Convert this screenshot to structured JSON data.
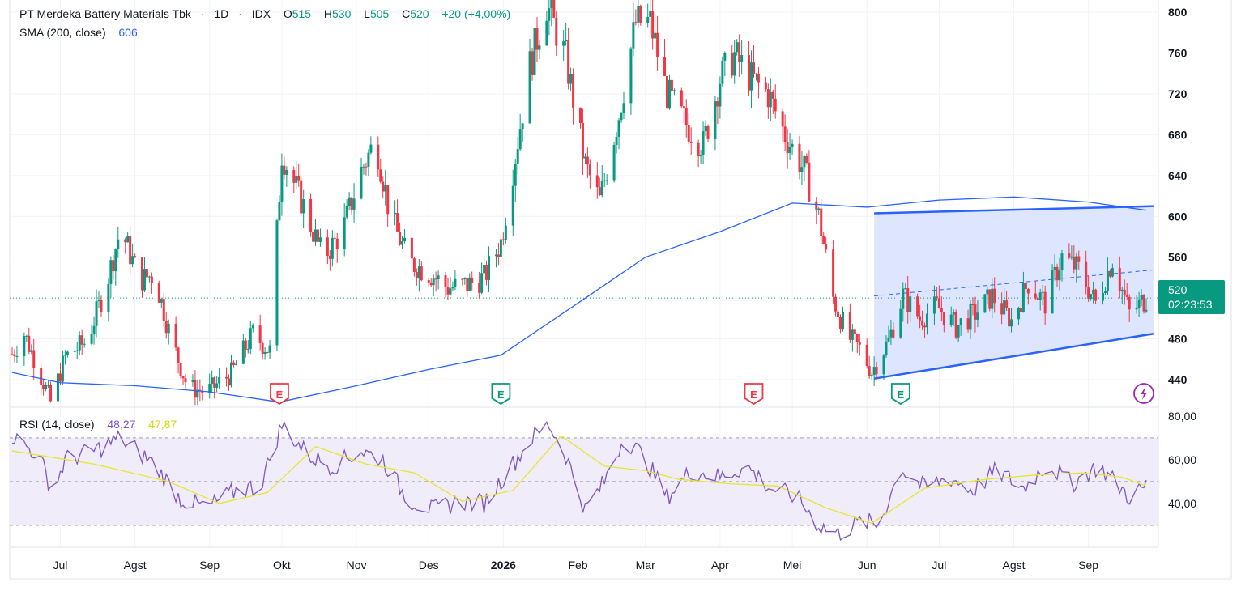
{
  "symbol": {
    "name": "PT Merdeka Battery Materials Tbk",
    "timeframe": "1D",
    "exchange": "IDX",
    "separator": "·",
    "ohlc": {
      "open_label": "O",
      "open": "515",
      "high_label": "H",
      "high": "530",
      "low_label": "L",
      "low": "505",
      "close_label": "C",
      "close": "520",
      "change": "+20 (+4,00%)"
    }
  },
  "indicators": {
    "sma": {
      "label": "SMA (200, close)",
      "value": "606"
    },
    "rsi": {
      "label": "RSI (14, close)",
      "value": "48,27",
      "sma_value": "47,87"
    }
  },
  "price_badge": {
    "price": "520",
    "countdown": "02:23:53"
  },
  "earnings_markers": [
    {
      "label": "E",
      "date": "2025-09-30",
      "kind": "negative"
    },
    {
      "label": "E",
      "date": "2025-12-31",
      "kind": "positive"
    },
    {
      "label": "E",
      "date": "2026-04-15",
      "kind": "negative"
    },
    {
      "label": "E",
      "date": "2026-06-15",
      "kind": "positive"
    }
  ],
  "colors": {
    "up": "#089981",
    "down": "#f23645",
    "sma": "#2962ff",
    "channel": "#2962ff",
    "channel_fill": "#d6e0ff",
    "rsi_line": "#7e57c2",
    "rsi_sma": "#e6e62e",
    "rsi_band": "#f1ecfa",
    "grid": "#f0f3fa",
    "axis_text": "#131722"
  },
  "chart_data": {
    "type": "candlestick",
    "x_tick_labels": [
      "Jul",
      "Agst",
      "Sep",
      "Okt",
      "Nov",
      "Des",
      "2026",
      "Feb",
      "Mar",
      "Apr",
      "Mei",
      "Jun",
      "Jul",
      "Agst",
      "Sep"
    ],
    "x_tick_dates": [
      "2025-07-01",
      "2025-08-01",
      "2025-09-01",
      "2025-10-01",
      "2025-11-01",
      "2025-12-01",
      "2026-01-01",
      "2026-02-01",
      "2026-03-01",
      "2026-04-01",
      "2026-05-01",
      "2026-06-01",
      "2026-07-01",
      "2026-08-01",
      "2026-09-01"
    ],
    "x_range": [
      "2025-06-11",
      "2026-09-25"
    ],
    "price_axis": {
      "ticks": [
        440,
        480,
        520,
        560,
        600,
        640,
        680,
        720,
        760,
        800
      ],
      "range": [
        413,
        812
      ]
    },
    "last_price": 520,
    "price_path": [
      [
        "2025-06-11",
        465
      ],
      [
        "2025-06-16",
        485
      ],
      [
        "2025-06-22",
        450
      ],
      [
        "2025-06-27",
        418
      ],
      [
        "2025-07-03",
        462
      ],
      [
        "2025-07-12",
        478
      ],
      [
        "2025-07-20",
        532
      ],
      [
        "2025-07-26",
        588
      ],
      [
        "2025-08-03",
        538
      ],
      [
        "2025-08-09",
        543
      ],
      [
        "2025-08-16",
        480
      ],
      [
        "2025-08-23",
        432
      ],
      [
        "2025-08-31",
        428
      ],
      [
        "2025-09-10",
        446
      ],
      [
        "2025-09-19",
        485
      ],
      [
        "2025-09-26",
        468
      ],
      [
        "2025-10-01",
        662
      ],
      [
        "2025-10-10",
        610
      ],
      [
        "2025-10-18",
        560
      ],
      [
        "2025-10-26",
        584
      ],
      [
        "2025-11-03",
        645
      ],
      [
        "2025-11-09",
        675
      ],
      [
        "2025-11-15",
        600
      ],
      [
        "2025-11-23",
        555
      ],
      [
        "2025-12-01",
        545
      ],
      [
        "2025-12-09",
        530
      ],
      [
        "2025-12-17",
        533
      ],
      [
        "2025-12-24",
        540
      ],
      [
        "2025-12-31",
        575
      ],
      [
        "2026-01-06",
        660
      ],
      [
        "2026-01-12",
        748
      ],
      [
        "2026-01-19",
        808
      ],
      [
        "2026-01-27",
        755
      ],
      [
        "2026-02-04",
        650
      ],
      [
        "2026-02-10",
        615
      ],
      [
        "2026-02-18",
        700
      ],
      [
        "2026-02-25",
        790
      ],
      [
        "2026-03-03",
        790
      ],
      [
        "2026-03-10",
        720
      ],
      [
        "2026-03-18",
        690
      ],
      [
        "2026-03-25",
        670
      ],
      [
        "2026-04-01",
        735
      ],
      [
        "2026-04-07",
        758
      ],
      [
        "2026-04-14",
        735
      ],
      [
        "2026-04-21",
        720
      ],
      [
        "2026-04-28",
        680
      ],
      [
        "2026-05-06",
        645
      ],
      [
        "2026-05-12",
        600
      ],
      [
        "2026-05-18",
        520
      ],
      [
        "2026-05-24",
        482
      ],
      [
        "2026-05-29",
        470
      ],
      [
        "2026-06-03",
        448
      ],
      [
        "2026-06-10",
        478
      ],
      [
        "2026-06-16",
        523
      ],
      [
        "2026-06-23",
        500
      ],
      [
        "2026-06-30",
        512
      ],
      [
        "2026-07-08",
        492
      ],
      [
        "2026-07-16",
        505
      ],
      [
        "2026-07-23",
        522
      ],
      [
        "2026-07-31",
        498
      ],
      [
        "2026-08-07",
        535
      ],
      [
        "2026-08-14",
        515
      ],
      [
        "2026-08-21",
        560
      ],
      [
        "2026-08-28",
        548
      ],
      [
        "2026-09-04",
        515
      ],
      [
        "2026-09-11",
        558
      ],
      [
        "2026-09-18",
        505
      ],
      [
        "2026-09-25",
        520
      ]
    ],
    "sma_200": [
      [
        "2025-06-11",
        447
      ],
      [
        "2025-07-01",
        437
      ],
      [
        "2025-08-01",
        434
      ],
      [
        "2025-09-01",
        428
      ],
      [
        "2025-09-30",
        418
      ],
      [
        "2025-11-01",
        434
      ],
      [
        "2025-12-01",
        450
      ],
      [
        "2025-12-31",
        464
      ],
      [
        "2026-02-01",
        515
      ],
      [
        "2026-03-01",
        560
      ],
      [
        "2026-04-01",
        585
      ],
      [
        "2026-05-01",
        613
      ],
      [
        "2026-06-01",
        609
      ],
      [
        "2026-07-01",
        616
      ],
      [
        "2026-08-01",
        619
      ],
      [
        "2026-09-01",
        614
      ],
      [
        "2026-09-25",
        606
      ]
    ],
    "channel": {
      "upper": [
        [
          "2026-06-04",
          603
        ],
        [
          "2026-09-28",
          610
        ]
      ],
      "lower": [
        [
          "2026-06-04",
          441
        ],
        [
          "2026-09-28",
          485
        ]
      ],
      "mid_dashed": true
    },
    "rsi": {
      "axis_ticks": [
        "40,00",
        "60,00",
        "80,00"
      ],
      "tick_values": [
        40,
        60,
        80
      ],
      "bands": [
        30,
        50,
        70
      ],
      "range": [
        20,
        84
      ],
      "path": [
        [
          "2025-06-11",
          71
        ],
        [
          "2025-06-22",
          62
        ],
        [
          "2025-06-28",
          45
        ],
        [
          "2025-07-03",
          60
        ],
        [
          "2025-07-15",
          64
        ],
        [
          "2025-07-26",
          70
        ],
        [
          "2025-08-09",
          58
        ],
        [
          "2025-08-20",
          42
        ],
        [
          "2025-08-31",
          38
        ],
        [
          "2025-09-12",
          46
        ],
        [
          "2025-09-22",
          48
        ],
        [
          "2025-10-01",
          76
        ],
        [
          "2025-10-12",
          62
        ],
        [
          "2025-10-22",
          57
        ],
        [
          "2025-11-03",
          64
        ],
        [
          "2025-11-12",
          60
        ],
        [
          "2025-11-22",
          42
        ],
        [
          "2025-12-03",
          37
        ],
        [
          "2025-12-14",
          41
        ],
        [
          "2025-12-24",
          40
        ],
        [
          "2026-01-03",
          55
        ],
        [
          "2026-01-13",
          70
        ],
        [
          "2026-01-20",
          76
        ],
        [
          "2026-01-27",
          62
        ],
        [
          "2026-02-04",
          37
        ],
        [
          "2026-02-12",
          50
        ],
        [
          "2026-02-20",
          70
        ],
        [
          "2026-02-28",
          62
        ],
        [
          "2026-03-10",
          43
        ],
        [
          "2026-03-20",
          55
        ],
        [
          "2026-04-01",
          52
        ],
        [
          "2026-04-12",
          57
        ],
        [
          "2026-04-22",
          47
        ],
        [
          "2026-05-03",
          43
        ],
        [
          "2026-05-12",
          30
        ],
        [
          "2026-05-20",
          26
        ],
        [
          "2026-05-30",
          32
        ],
        [
          "2026-06-06",
          30
        ],
        [
          "2026-06-15",
          56
        ],
        [
          "2026-06-25",
          47
        ],
        [
          "2026-07-05",
          52
        ],
        [
          "2026-07-15",
          46
        ],
        [
          "2026-07-25",
          55
        ],
        [
          "2026-08-05",
          47
        ],
        [
          "2026-08-15",
          58
        ],
        [
          "2026-08-25",
          49
        ],
        [
          "2026-09-05",
          57
        ],
        [
          "2026-09-12",
          50
        ],
        [
          "2026-09-18",
          43
        ],
        [
          "2026-09-25",
          48
        ]
      ],
      "sma_path": [
        [
          "2025-06-11",
          64
        ],
        [
          "2025-07-15",
          58
        ],
        [
          "2025-08-15",
          50
        ],
        [
          "2025-09-05",
          40
        ],
        [
          "2025-09-25",
          45
        ],
        [
          "2025-10-15",
          66
        ],
        [
          "2025-11-05",
          58
        ],
        [
          "2025-11-25",
          54
        ],
        [
          "2025-12-15",
          41
        ],
        [
          "2026-01-05",
          46
        ],
        [
          "2026-01-25",
          71
        ],
        [
          "2026-02-12",
          57
        ],
        [
          "2026-03-01",
          55
        ],
        [
          "2026-03-15",
          51
        ],
        [
          "2026-04-05",
          49
        ],
        [
          "2026-04-25",
          48
        ],
        [
          "2026-05-15",
          38
        ],
        [
          "2026-06-03",
          31
        ],
        [
          "2026-06-25",
          47
        ],
        [
          "2026-07-20",
          51
        ],
        [
          "2026-08-10",
          53
        ],
        [
          "2026-08-30",
          54
        ],
        [
          "2026-09-15",
          52
        ],
        [
          "2026-09-25",
          48
        ]
      ]
    }
  }
}
